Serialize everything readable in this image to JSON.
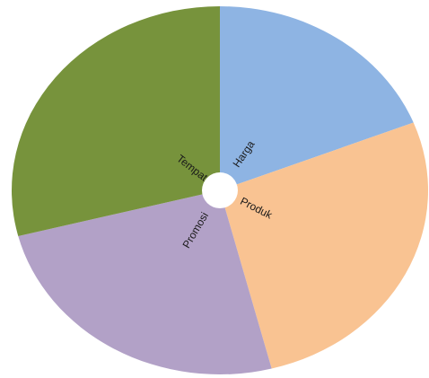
{
  "chart_data": {
    "type": "pie",
    "donut_hole": true,
    "start_angle_deg": 0,
    "direction": "clockwise",
    "slices": [
      {
        "label": "Harga",
        "value": 19,
        "color": "#8eb4e3"
      },
      {
        "label": "Produk",
        "value": 27,
        "color": "#f9c392"
      },
      {
        "label": "Promosi",
        "value": 25,
        "color": "#b2a1c7"
      },
      {
        "label": "Tempat",
        "value": 29,
        "color": "#77933c"
      }
    ]
  }
}
